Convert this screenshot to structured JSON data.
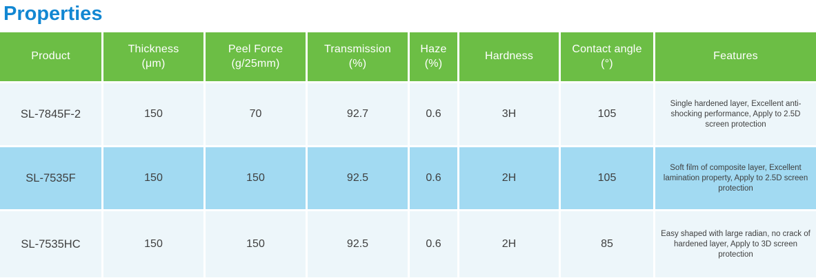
{
  "title": "Properties",
  "colors": {
    "title_text": "#1287d2",
    "header_bg": "#6cbe45",
    "header_text": "#ffffff",
    "row_light_bg": "#edf6fa",
    "row_highlight_bg": "#a2daf2",
    "body_text": "#3f3f3f"
  },
  "table": {
    "columns": [
      {
        "line1": "Product",
        "line2": ""
      },
      {
        "line1": "Thickness",
        "line2": "(μm)"
      },
      {
        "line1": "Peel Force",
        "line2": "(g/25mm)"
      },
      {
        "line1": "Transmission",
        "line2": "(%)"
      },
      {
        "line1": "Haze",
        "line2": "(%)"
      },
      {
        "line1": "Hardness",
        "line2": ""
      },
      {
        "line1": "Contact angle",
        "line2": "(°)"
      },
      {
        "line1": "Features",
        "line2": ""
      }
    ],
    "rows": [
      {
        "product": "SL-7845F-2",
        "thickness_um": "150",
        "peel_force_g_25mm": "70",
        "transmission_pct": "92.7",
        "haze_pct": "0.6",
        "hardness": "3H",
        "contact_angle_deg": "105",
        "features": "Single hardened layer, Excellent anti-shocking performance, Apply to 2.5D screen protection"
      },
      {
        "product": "SL-7535F",
        "thickness_um": "150",
        "peel_force_g_25mm": "150",
        "transmission_pct": "92.5",
        "haze_pct": "0.6",
        "hardness": "2H",
        "contact_angle_deg": "105",
        "features": "Soft film of composite layer, Excellent lamination property, Apply to 2.5D screen protection"
      },
      {
        "product": "SL-7535HC",
        "thickness_um": "150",
        "peel_force_g_25mm": "150",
        "transmission_pct": "92.5",
        "haze_pct": "0.6",
        "hardness": "2H",
        "contact_angle_deg": "85",
        "features": "Easy shaped with large radian, no crack of hardened layer, Apply to 3D screen protection"
      }
    ]
  }
}
